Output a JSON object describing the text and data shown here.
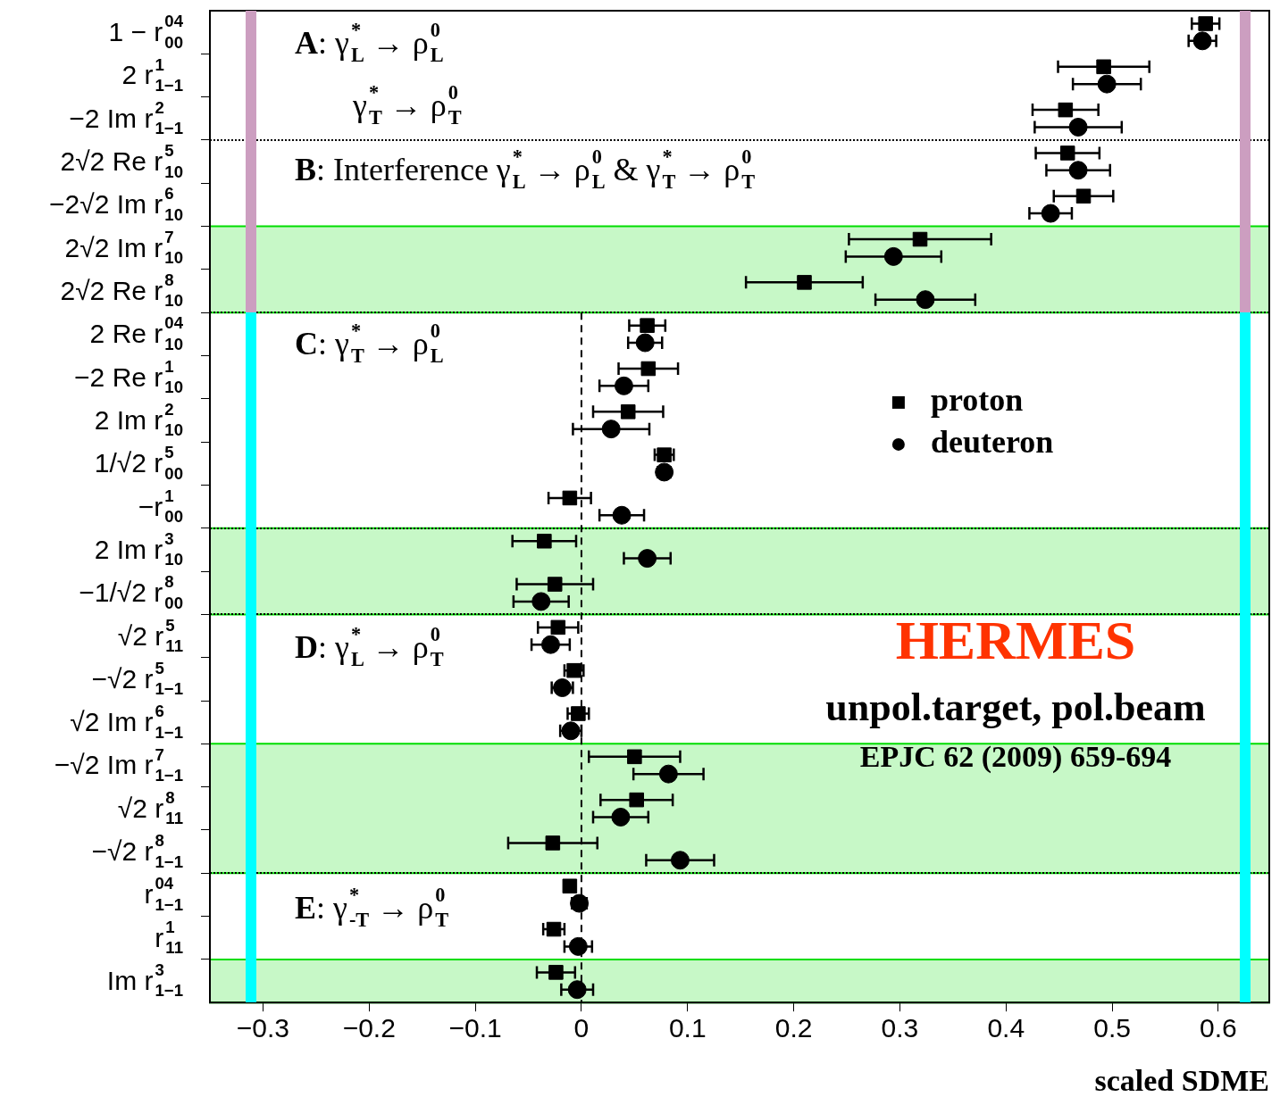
{
  "chart_data": {
    "type": "scatter",
    "xlabel": "scaled SDME",
    "categories": [
      "1 − r$^{04}$$_{00}$",
      "2 r$^{1}$$_{1−1}$",
      "−2 Im r$^{2}$$_{1−1}$",
      "2√2 Re r$^{5}$$_{10}$",
      "−2√2 Im r$^{6}$$_{10}$",
      "2√2 Im r$^{7}$$_{10}$",
      "2√2 Re r$^{8}$$_{10}$",
      "2 Re r$^{04}$$_{10}$",
      "−2 Re r$^{1}$$_{10}$",
      "2 Im r$^{2}$$_{10}$",
      "1/√2 r$^{5}$$_{00}$",
      "−r$^{1}$$_{00}$",
      "2 Im r$^{3}$$_{10}$",
      "−1/√2 r$^{8}$$_{00}$",
      "√2 r$^{5}$$_{11}$",
      "−√2 r$^{5}$$_{1−1}$",
      "√2 Im r$^{6}$$_{1−1}$",
      "−√2 Im r$^{7}$$_{1−1}$",
      "√2 r$^{8}$$_{11}$",
      "−√2 r$^{8}$$_{1−1}$",
      "r$^{04}$$_{1−1}$",
      "r$^{1}$$_{11}$",
      "Im r$^{3}$$_{1−1}$"
    ],
    "orientation": "horizontal",
    "series": [
      {
        "name": "proton",
        "color": "#000000",
        "marker": "square",
        "values": [
          0.588,
          0.492,
          0.456,
          0.458,
          0.473,
          0.319,
          0.21,
          0.062,
          0.063,
          0.044,
          0.078,
          -0.011,
          -0.035,
          -0.025,
          -0.022,
          -0.007,
          -0.003,
          0.05,
          0.052,
          -0.027,
          -0.011,
          -0.026,
          -0.024
        ],
        "errors": [
          0.013,
          0.043,
          0.031,
          0.03,
          0.028,
          0.067,
          0.055,
          0.017,
          0.028,
          0.033,
          0.009,
          0.02,
          0.03,
          0.036,
          0.019,
          0.009,
          0.01,
          0.043,
          0.034,
          0.042,
          null,
          0.01,
          0.018
        ]
      },
      {
        "name": "deuteron",
        "color": "#000000",
        "marker": "circle",
        "values": [
          0.585,
          0.495,
          0.468,
          0.468,
          0.442,
          0.294,
          0.324,
          0.06,
          0.04,
          0.028,
          0.078,
          0.038,
          0.062,
          -0.038,
          -0.029,
          -0.018,
          -0.01,
          0.082,
          0.037,
          0.093,
          -0.002,
          -0.003,
          -0.004
        ],
        "errors": [
          0.013,
          0.032,
          0.041,
          0.03,
          0.02,
          0.045,
          0.047,
          0.016,
          0.023,
          0.036,
          0.006,
          0.021,
          0.022,
          0.026,
          0.018,
          0.01,
          0.01,
          0.033,
          0.026,
          0.032,
          0.007,
          0.013,
          0.015
        ]
      }
    ],
    "xlim": [
      -0.35,
      0.648
    ],
    "xticks": [
      {
        "value": -0.3,
        "label": "−0.3"
      },
      {
        "value": -0.2,
        "label": "−0.2"
      },
      {
        "value": -0.1,
        "label": "−0.1"
      },
      0,
      0.1,
      0.2,
      0.3,
      0.4,
      0.5,
      0.6
    ],
    "grid": false,
    "legend": "right",
    "ref_lines": [
      {
        "axis": "x",
        "value": 0,
        "line_style": "dashed",
        "color": "#000000"
      }
    ],
    "bands": [
      {
        "axis": "y",
        "from": "2√2 Im r$^{7}$$_{10}$",
        "to": "2√2 Re r$^{8}$$_{10}$",
        "color": "#00dd00"
      },
      {
        "axis": "y",
        "from": "2 Im r$^{3}$$_{10}$",
        "to": "−1/√2 r$^{8}$$_{00}$",
        "color": "#00dd00"
      },
      {
        "axis": "y",
        "from": "−√2 Im r$^{7}$$_{1−1}$",
        "to": "−√2 r$^{8}$$_{1−1}$",
        "color": "#00dd00"
      },
      {
        "axis": "y",
        "from": "Im r$^{3}$$_{1−1}$",
        "to": "Im r$^{3}$$_{1−1}$",
        "color": "#00dd00"
      }
    ],
    "annotations": [
      "A: γ$^{*}$$_{L}$ → ρ$^{0}$$_{L}$",
      "γ$^{*}$$_{T}$ → ρ$^{0}$$_{T}$",
      "B: Interference γ$^{*}$$_{L}$ → ρ$^{0}$$_{L}$ & γ$^{*}$$_{T}$ → ρ$^{0}$$_{T}$",
      "C: γ$^{*}$$_{T}$ → ρ$^{0}$$_{L}$",
      "D: γ$^{*}$$_{L}$ → ρ$^{0}$$_{T}$",
      "E: γ$^{*}$$_{-T}$ → ρ$^{0}$$_{T}$",
      "HERMES",
      "unpol.target, pol.beam",
      "EPJC 62 (2009) 659-694"
    ]
  }
}
